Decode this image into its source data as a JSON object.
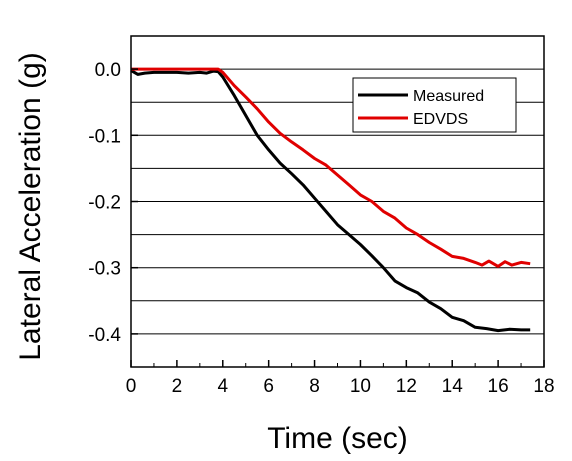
{
  "chart_data": {
    "type": "line",
    "title": "",
    "xlabel": "Time (sec)",
    "ylabel": "Lateral Acceleration (g)",
    "xlim": [
      0,
      18
    ],
    "ylim": [
      -0.45,
      0.05
    ],
    "xticks": [
      0,
      2,
      4,
      6,
      8,
      10,
      12,
      14,
      16,
      18
    ],
    "xtick_labels": [
      "0",
      "2",
      "4",
      "6",
      "8",
      "10",
      "12",
      "14",
      "16",
      "18"
    ],
    "yticks": [
      0.0,
      -0.1,
      -0.2,
      -0.3,
      -0.4
    ],
    "ytick_labels": [
      "0.0",
      "-0.1",
      "-0.2",
      "-0.3",
      "-0.4"
    ],
    "gridlines_y": [
      0.0,
      -0.05,
      -0.1,
      -0.15,
      -0.2,
      -0.25,
      -0.3,
      -0.35,
      -0.4
    ],
    "grid": "horizontal",
    "legend_position": "top-right",
    "series": [
      {
        "name": "Measured",
        "color": "#000000",
        "x": [
          0,
          0.3,
          0.6,
          1,
          1.5,
          2,
          2.5,
          3,
          3.3,
          3.6,
          3.8,
          4,
          4.5,
          5,
          5.5,
          6,
          6.5,
          7,
          7.5,
          8,
          8.5,
          9,
          9.5,
          10,
          10.5,
          11,
          11.5,
          12,
          12.5,
          13,
          13.5,
          14,
          14.5,
          15,
          15.5,
          16,
          16.5,
          17,
          17.4
        ],
        "y": [
          -0.002,
          -0.008,
          -0.006,
          -0.005,
          -0.005,
          -0.005,
          -0.006,
          -0.005,
          -0.006,
          -0.003,
          -0.004,
          -0.012,
          -0.04,
          -0.07,
          -0.1,
          -0.122,
          -0.142,
          -0.158,
          -0.175,
          -0.195,
          -0.215,
          -0.235,
          -0.25,
          -0.265,
          -0.282,
          -0.3,
          -0.32,
          -0.33,
          -0.338,
          -0.352,
          -0.362,
          -0.375,
          -0.38,
          -0.39,
          -0.392,
          -0.395,
          -0.393,
          -0.394,
          -0.394
        ]
      },
      {
        "name": "EDVDS",
        "color": "#e00000",
        "x": [
          0,
          0.5,
          1,
          1.5,
          2,
          2.5,
          3,
          3.5,
          3.8,
          4,
          4.5,
          5,
          5.5,
          6,
          6.5,
          7,
          7.5,
          8,
          8.5,
          9,
          9.5,
          10,
          10.5,
          11,
          11.5,
          12,
          12.5,
          13,
          13.5,
          14,
          14.5,
          15,
          15.3,
          15.6,
          16,
          16.3,
          16.6,
          17,
          17.4
        ],
        "y": [
          0,
          0,
          0,
          0,
          0,
          0,
          0,
          0,
          0,
          -0.005,
          -0.025,
          -0.042,
          -0.06,
          -0.08,
          -0.097,
          -0.11,
          -0.122,
          -0.135,
          -0.145,
          -0.16,
          -0.175,
          -0.19,
          -0.2,
          -0.215,
          -0.225,
          -0.24,
          -0.25,
          -0.262,
          -0.272,
          -0.283,
          -0.286,
          -0.292,
          -0.296,
          -0.29,
          -0.298,
          -0.291,
          -0.296,
          -0.292,
          -0.294
        ]
      }
    ]
  }
}
